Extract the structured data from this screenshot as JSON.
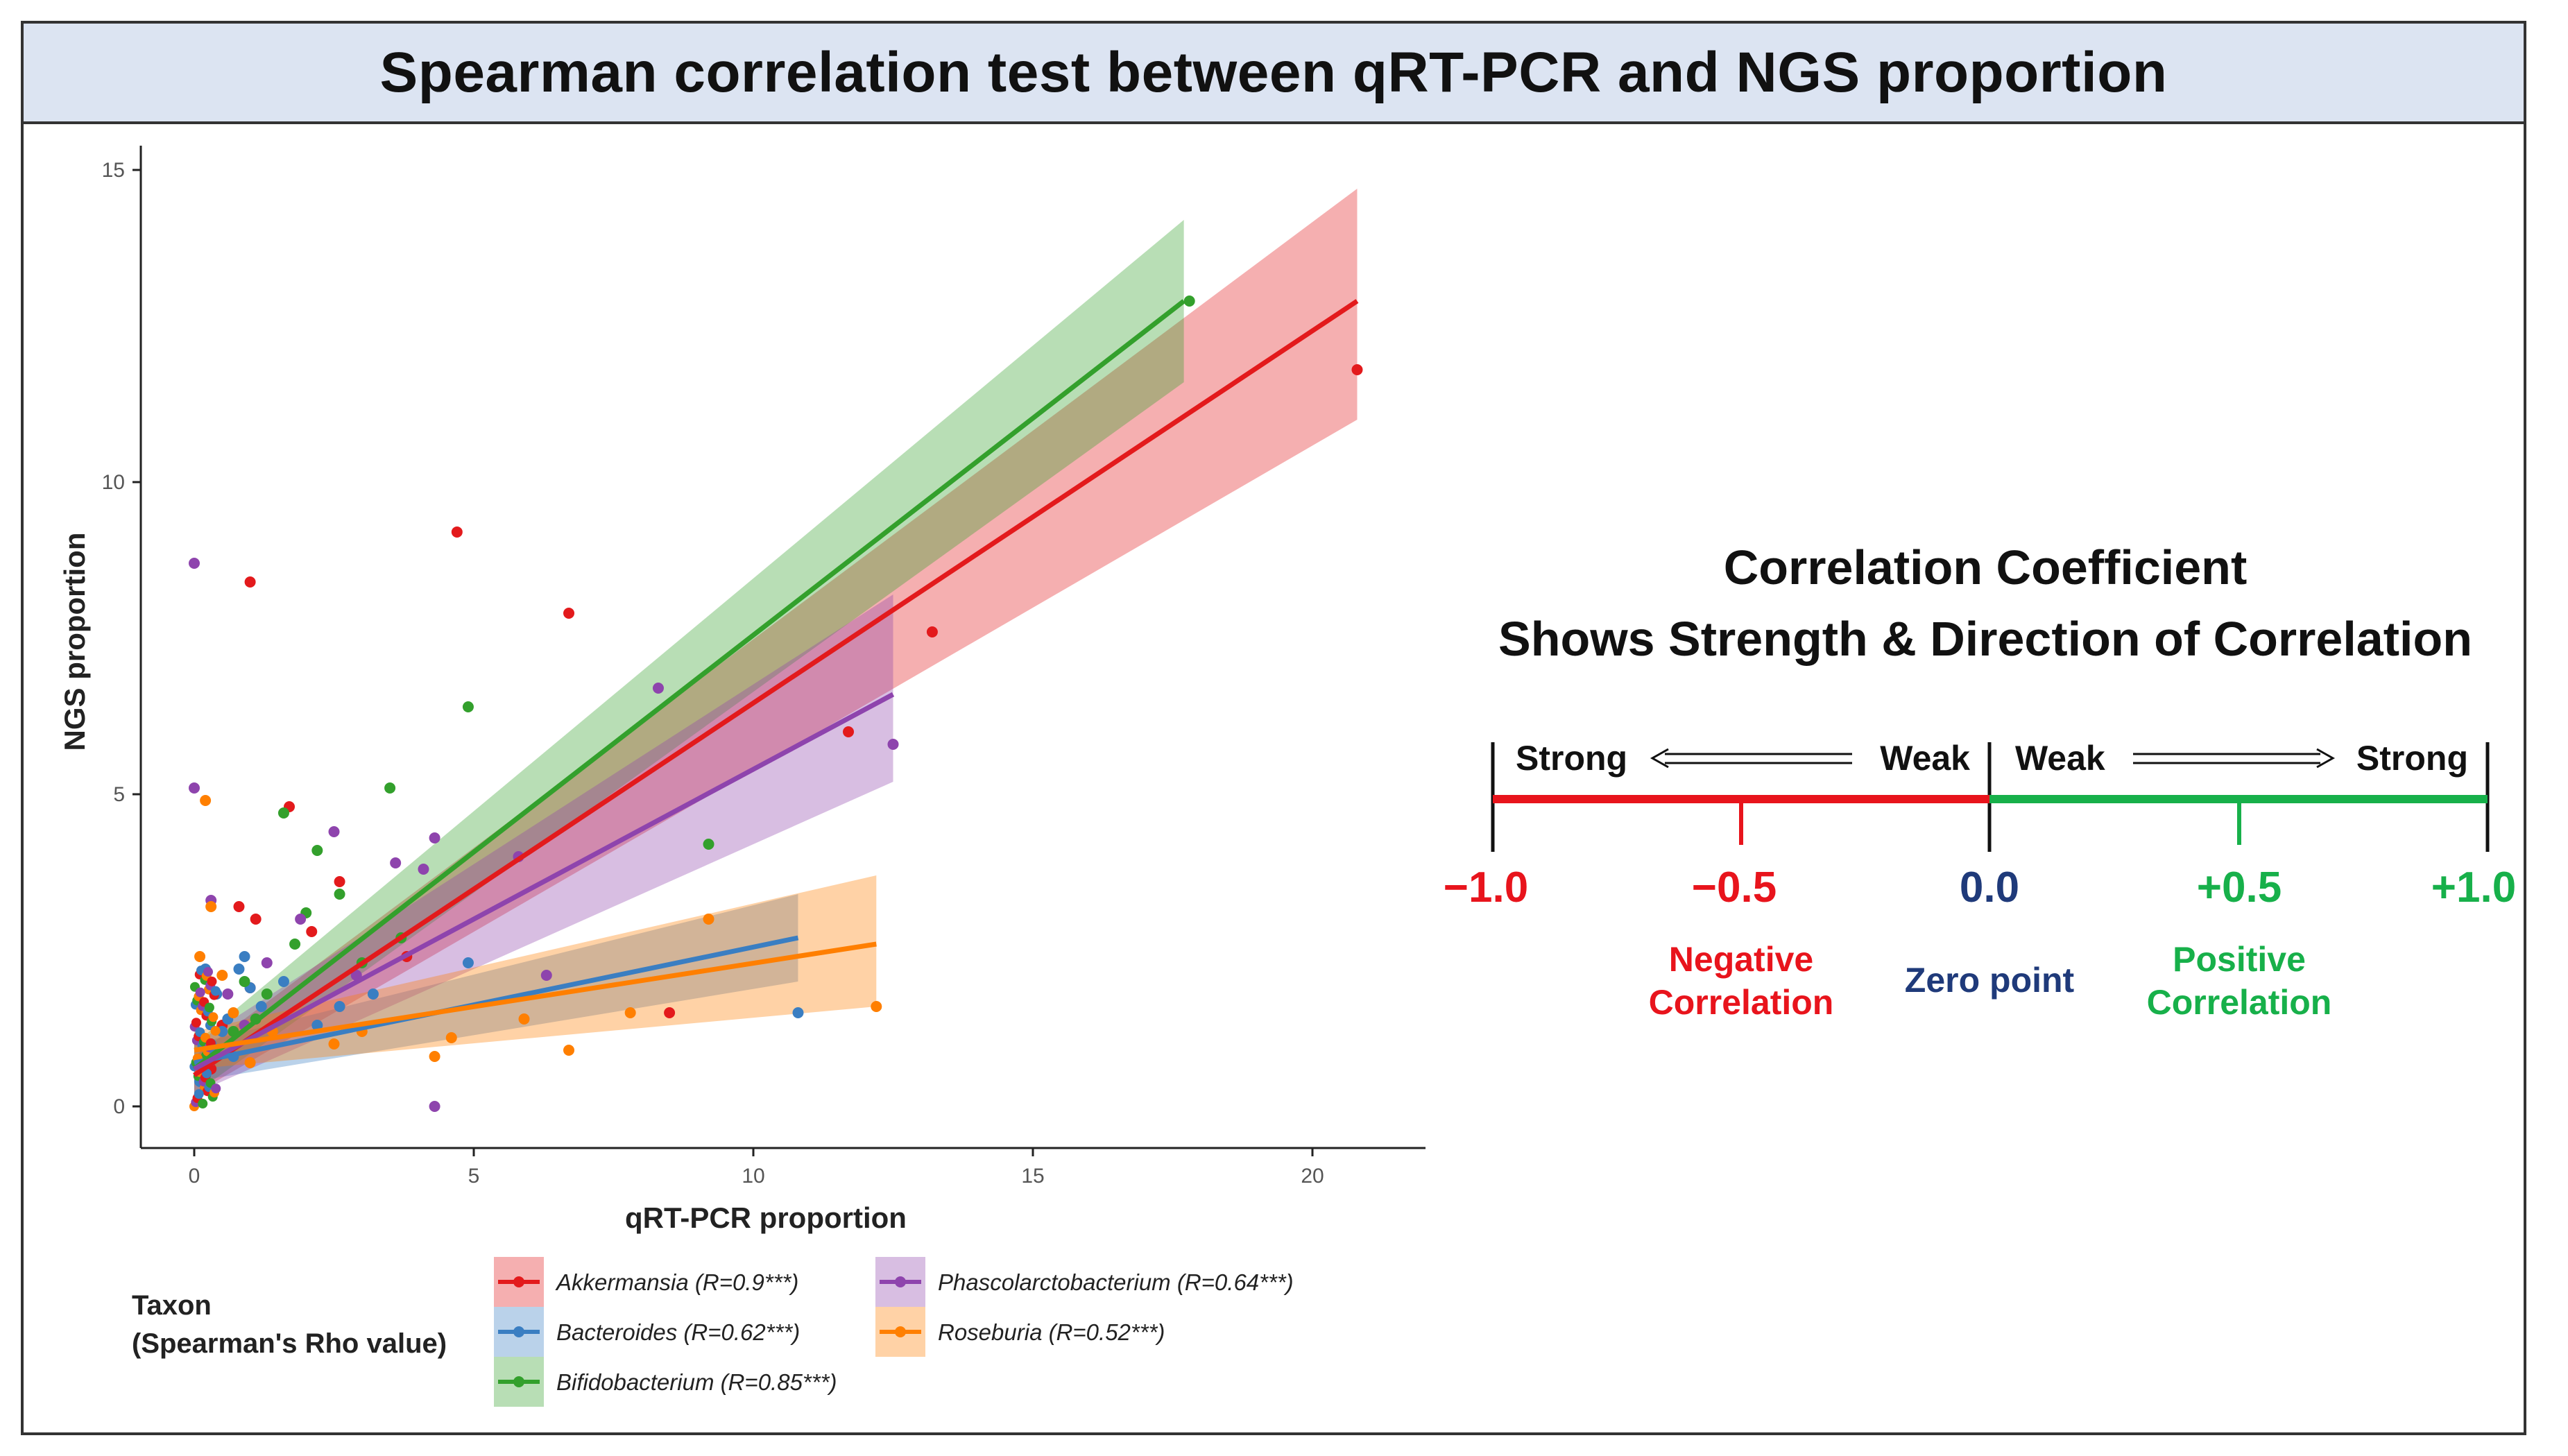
{
  "title": "Spearman correlation test between qRT-PCR and NGS proportion",
  "colors": {
    "akkermansia": "#e31a1c",
    "bacteroides": "#3a7ec2",
    "bifidobacterium": "#33a02c",
    "phascolarctobacterium": "#8e44ad",
    "roseburia": "#ff7f00",
    "overlap": "#7a7a6a",
    "negative": "#e8141c",
    "positive": "#17b04a",
    "zero": "#1f3a7a"
  },
  "chart_data": {
    "type": "scatter",
    "xlabel": "qRT-PCR proportion",
    "ylabel": "NGS proportion",
    "xlim": [
      -1,
      22
    ],
    "ylim": [
      -0.6,
      15.2
    ],
    "xticks": [
      0,
      5,
      10,
      15,
      20
    ],
    "yticks": [
      0,
      5,
      10,
      15
    ],
    "grid": false,
    "legend": {
      "title_line1": "Taxon",
      "title_line2": "(Spearman's Rho value)",
      "placement": "bottom"
    },
    "series": [
      {
        "key": "akkermansia",
        "name": "Akkermansia (R=0.9***)",
        "fit": {
          "x0": 0,
          "x1": 20.8,
          "y0": 0.5,
          "y1": 12.9
        },
        "band": {
          "lo0": 0.2,
          "lo1": 11.0,
          "hi0": 0.8,
          "hi1": 14.7
        },
        "points": [
          [
            1,
            8.4
          ],
          [
            4.7,
            9.2
          ],
          [
            6.7,
            7.9
          ],
          [
            13.2,
            7.6
          ],
          [
            11.7,
            6.0
          ],
          [
            20.8,
            11.8
          ],
          [
            0.8,
            3.2
          ],
          [
            1.1,
            3.0
          ],
          [
            1.7,
            4.8
          ],
          [
            2.6,
            3.6
          ],
          [
            1.0,
            1.9
          ],
          [
            0.5,
            1.3
          ],
          [
            0.3,
            0.6
          ],
          [
            2.1,
            2.8
          ],
          [
            8.5,
            1.5
          ],
          [
            3.8,
            2.4
          ],
          [
            0.2,
            0.3
          ]
        ]
      },
      {
        "key": "bacteroides",
        "name": "Bacteroides (R=0.62***)",
        "fit": {
          "x0": 0,
          "x1": 10.8,
          "y0": 0.7,
          "y1": 2.7
        },
        "band": {
          "lo0": 0.4,
          "lo1": 2.0,
          "hi0": 1.0,
          "hi1": 3.4
        },
        "points": [
          [
            0.2,
            2.2
          ],
          [
            0.4,
            1.8
          ],
          [
            0.6,
            1.4
          ],
          [
            0.9,
            2.4
          ],
          [
            1.2,
            1.6
          ],
          [
            0.3,
            1.0
          ],
          [
            0.7,
            0.8
          ],
          [
            1.6,
            2.0
          ],
          [
            2.2,
            1.3
          ],
          [
            3.2,
            1.8
          ],
          [
            4.9,
            2.3
          ],
          [
            10.8,
            1.5
          ],
          [
            0.1,
            0.4
          ],
          [
            0.5,
            1.2
          ],
          [
            1.0,
            1.9
          ],
          [
            2.6,
            1.6
          ],
          [
            0.8,
            2.2
          ]
        ]
      },
      {
        "key": "bifidobacterium",
        "name": "Bifidobacterium (R=0.85***)",
        "fit": {
          "x0": 0,
          "x1": 17.7,
          "y0": 0.6,
          "y1": 12.9
        },
        "band": {
          "lo0": 0.2,
          "lo1": 11.6,
          "hi0": 1.0,
          "hi1": 14.2
        },
        "points": [
          [
            17.8,
            12.9
          ],
          [
            4.9,
            6.4
          ],
          [
            9.2,
            4.2
          ],
          [
            3.5,
            5.1
          ],
          [
            1.6,
            4.7
          ],
          [
            2.2,
            4.1
          ],
          [
            2.6,
            3.4
          ],
          [
            3.0,
            2.3
          ],
          [
            1.3,
            1.8
          ],
          [
            0.7,
            1.2
          ],
          [
            0.4,
            0.8
          ],
          [
            2.0,
            3.1
          ],
          [
            0.9,
            2.0
          ],
          [
            1.8,
            2.6
          ],
          [
            0.2,
            0.5
          ],
          [
            3.7,
            2.7
          ],
          [
            1.1,
            1.4
          ]
        ]
      },
      {
        "key": "phascolarctobacterium",
        "name": "Phascolarctobacterium (R=0.64***)",
        "fit": {
          "x0": 0,
          "x1": 12.5,
          "y0": 0.6,
          "y1": 6.6
        },
        "band": {
          "lo0": 0.2,
          "lo1": 5.2,
          "hi0": 1.0,
          "hi1": 8.2
        },
        "points": [
          [
            0,
            8.7
          ],
          [
            8.3,
            6.7
          ],
          [
            12.5,
            5.8
          ],
          [
            0,
            5.1
          ],
          [
            2.5,
            4.4
          ],
          [
            4.3,
            4.3
          ],
          [
            3.6,
            3.9
          ],
          [
            4.1,
            3.8
          ],
          [
            0.3,
            3.3
          ],
          [
            4.3,
            0
          ],
          [
            1.3,
            2.3
          ],
          [
            0.6,
            1.8
          ],
          [
            2.9,
            2.1
          ],
          [
            5.8,
            4.0
          ],
          [
            1.9,
            3.0
          ],
          [
            0.9,
            1.3
          ],
          [
            6.3,
            2.1
          ]
        ]
      },
      {
        "key": "roseburia",
        "name": "Roseburia (R=0.52***)",
        "fit": {
          "x0": 0,
          "x1": 12.2,
          "y0": 0.9,
          "y1": 2.6
        },
        "band": {
          "lo0": 0.6,
          "lo1": 1.6,
          "hi0": 1.2,
          "hi1": 3.7
        },
        "points": [
          [
            0.2,
            4.9
          ],
          [
            0.3,
            3.2
          ],
          [
            0.1,
            2.4
          ],
          [
            0.5,
            2.1
          ],
          [
            2.5,
            1.0
          ],
          [
            4.3,
            0.8
          ],
          [
            6.7,
            0.9
          ],
          [
            7.8,
            1.5
          ],
          [
            9.2,
            3.0
          ],
          [
            12.2,
            1.6
          ],
          [
            5.9,
            1.4
          ],
          [
            3.0,
            1.2
          ],
          [
            1.4,
            1.2
          ],
          [
            0.7,
            1.5
          ],
          [
            0.2,
            0.3
          ],
          [
            4.6,
            1.1
          ],
          [
            1.0,
            0.7
          ]
        ]
      }
    ]
  },
  "coefficient_panel": {
    "heading_line1": "Correlation Coefficient",
    "heading_line2": "Shows Strength & Direction of Correlation",
    "left_strong": "Strong",
    "left_weak": "Weak",
    "right_weak": "Weak",
    "right_strong": "Strong",
    "ticks": [
      {
        "label": "−1.0",
        "tone": "negative"
      },
      {
        "label": "−0.5",
        "tone": "negative"
      },
      {
        "label": "0.0",
        "tone": "zero"
      },
      {
        "label": "+0.5",
        "tone": "positive"
      },
      {
        "label": "+1.0",
        "tone": "positive"
      }
    ],
    "negative_line1": "Negative",
    "negative_line2": "Correlation",
    "zero_label": "Zero point",
    "positive_line1": "Positive",
    "positive_line2": "Correlation"
  }
}
